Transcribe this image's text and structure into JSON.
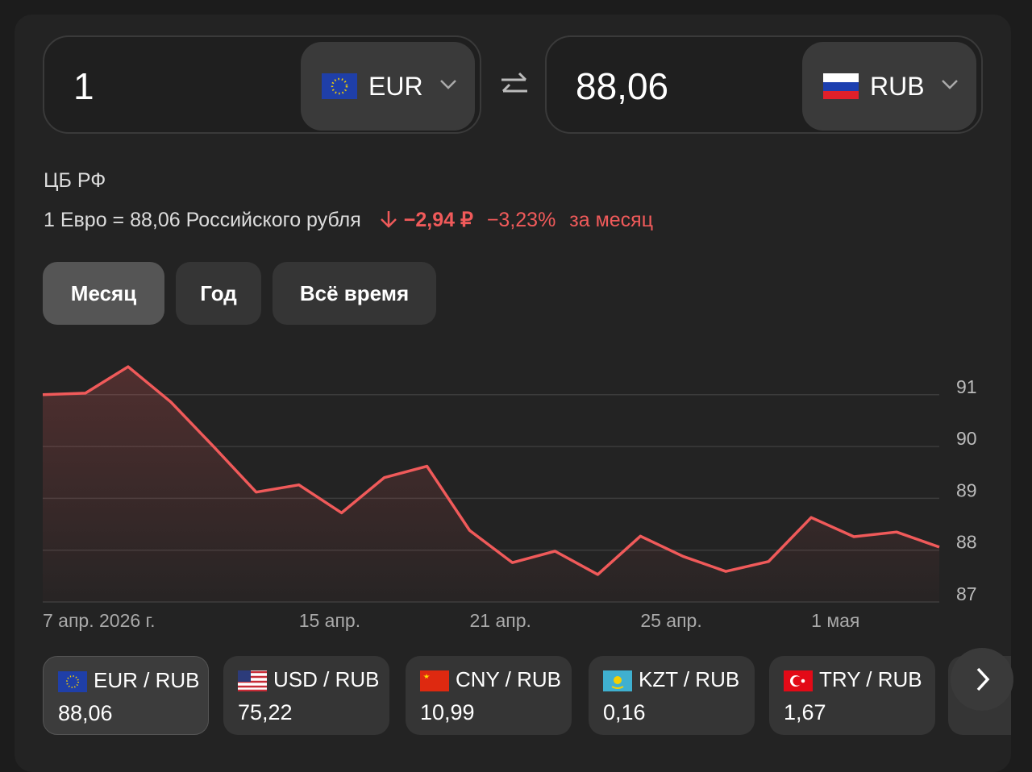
{
  "converter": {
    "from": {
      "amount": "1",
      "currency": "EUR"
    },
    "to": {
      "amount": "88,06",
      "currency": "RUB"
    }
  },
  "source": "ЦБ РФ",
  "rate": {
    "text": "1 Евро = 88,06 Российского рубля",
    "change": "−2,94 ₽",
    "percent": "−3,23%",
    "period": "за месяц"
  },
  "tabs": [
    "Месяц",
    "Год",
    "Всё время"
  ],
  "active_tab": 0,
  "chart_data": {
    "type": "line",
    "categories": [
      "7 апр. 2026 г.",
      null,
      null,
      null,
      null,
      null,
      "15 апр.",
      null,
      null,
      null,
      "21 апр.",
      null,
      null,
      null,
      "25 апр.",
      null,
      null,
      null,
      "1 мая",
      null,
      null,
      null
    ],
    "values": [
      91.0,
      91.03,
      91.54,
      90.86,
      90.0,
      89.12,
      89.26,
      88.72,
      89.4,
      89.62,
      88.38,
      87.76,
      87.98,
      87.53,
      88.27,
      87.88,
      87.59,
      87.78,
      88.63,
      88.26,
      88.35,
      88.06
    ],
    "color": "#f05a5a",
    "ylim": [
      87,
      91.65
    ],
    "yticks": [
      87,
      88,
      89,
      90,
      91
    ],
    "grid": true
  },
  "pairs": [
    {
      "name": "EUR / RUB",
      "value": "88,06"
    },
    {
      "name": "USD / RUB",
      "value": "75,22"
    },
    {
      "name": "CNY / RUB",
      "value": "10,99"
    },
    {
      "name": "KZT / RUB",
      "value": "0,16"
    },
    {
      "name": "TRY / RUB",
      "value": "1,67"
    }
  ]
}
